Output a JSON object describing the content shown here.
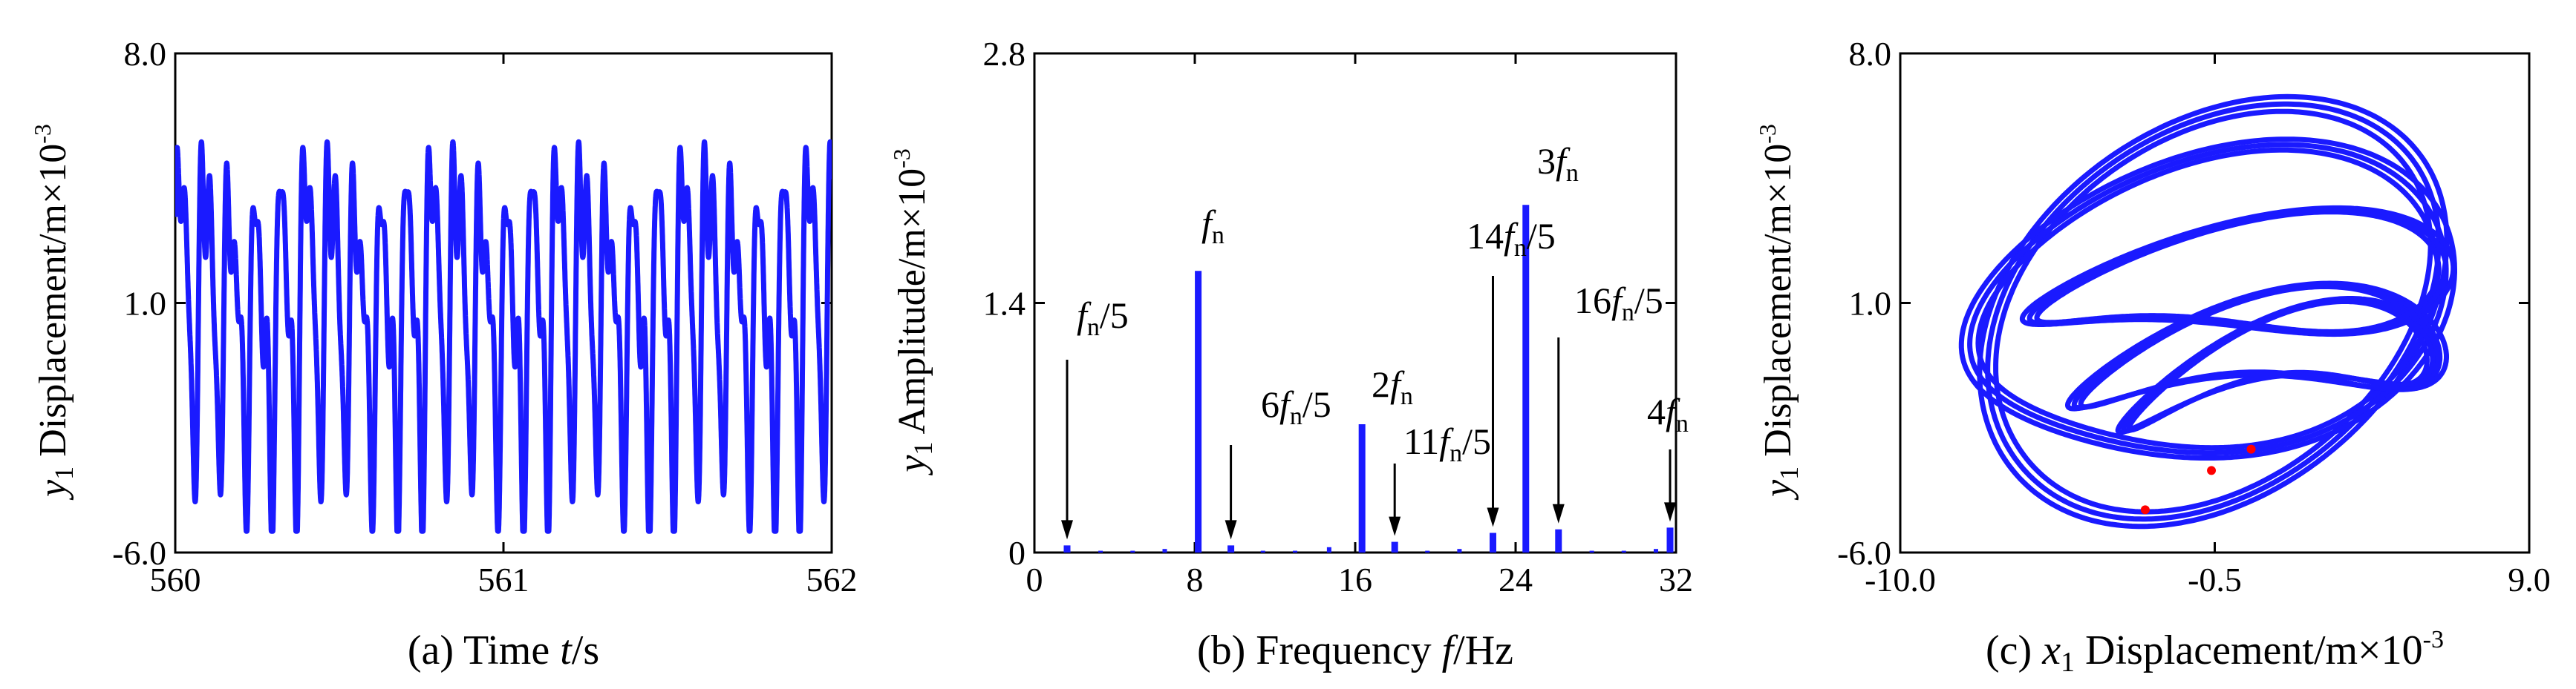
{
  "colors": {
    "series": "#1a1aff",
    "marker": "#ff0000",
    "axis": "#000000"
  },
  "panels": [
    {
      "id": "a",
      "chart_data": {
        "type": "line",
        "caption": {
          "prefix": "(a) Time  ",
          "var": "t",
          "unit": "/s"
        },
        "ylabel": {
          "var": "y",
          "sub": "1",
          "text": " Displacement/m×10",
          "sup": "-3"
        },
        "xlim": [
          560,
          562
        ],
        "ylim": [
          -6.0,
          8.0
        ],
        "xticks": [
          "560",
          "561",
          "562"
        ],
        "yticks": [
          "-6.0",
          "1.0",
          "8.0"
        ],
        "grid": false,
        "series": [
          {
            "model": "quasi-periodic signal, approx. 13 Hz dominant with harmonics, range about -5.4 to 6.8"
          }
        ]
      }
    },
    {
      "id": "b",
      "chart_data": {
        "type": "bar",
        "caption": {
          "prefix": "(b) Frequency  ",
          "var": "f",
          "unit": "/Hz"
        },
        "ylabel": {
          "var": "y",
          "sub": "1",
          "text": " Amplitude/m×10",
          "sup": "-3"
        },
        "xlim": [
          0,
          32
        ],
        "ylim": [
          0,
          2.8
        ],
        "xticks": [
          "0",
          "8",
          "16",
          "24",
          "32"
        ],
        "yticks": [
          "0",
          "1.4",
          "2.8"
        ],
        "grid": false,
        "x": [
          1.63,
          8.17,
          9.8,
          16.34,
          17.97,
          22.87,
          24.51,
          26.14,
          32.68
        ],
        "values": [
          0.04,
          1.58,
          0.04,
          0.72,
          0.06,
          0.11,
          1.95,
          0.13,
          0.14
        ],
        "minor_x": [
          3.3,
          4.9,
          6.5,
          11.4,
          13.0,
          14.7,
          19.6,
          21.2,
          27.8,
          29.4,
          31.0
        ],
        "minor_values": [
          0.01,
          0.01,
          0.02,
          0.01,
          0.01,
          0.03,
          0.01,
          0.02,
          0.01,
          0.01,
          0.02
        ],
        "annotations": [
          {
            "x": 1.63,
            "pre": "",
            "f": "f",
            "sub": "n",
            "post": "/5",
            "arrow": true
          },
          {
            "x": 8.17,
            "pre": "",
            "f": "f",
            "sub": "n",
            "post": "",
            "arrow": false
          },
          {
            "x": 9.8,
            "pre": "6",
            "f": "f",
            "sub": "n",
            "post": "/5",
            "arrow": true
          },
          {
            "x": 16.34,
            "pre": "2",
            "f": "f",
            "sub": "n",
            "post": "",
            "arrow": false
          },
          {
            "x": 17.97,
            "pre": "11",
            "f": "f",
            "sub": "n",
            "post": "/5",
            "arrow": true
          },
          {
            "x": 22.87,
            "pre": "14",
            "f": "f",
            "sub": "n",
            "post": "/5",
            "arrow": true
          },
          {
            "x": 24.51,
            "pre": "3",
            "f": "f",
            "sub": "n",
            "post": "",
            "arrow": false
          },
          {
            "x": 26.14,
            "pre": "16",
            "f": "f",
            "sub": "n",
            "post": "/5",
            "arrow": true
          },
          {
            "x": 32.68,
            "pre": "4",
            "f": "f",
            "sub": "n",
            "post": "",
            "arrow": true
          }
        ]
      }
    },
    {
      "id": "c",
      "chart_data": {
        "type": "line",
        "caption": {
          "prefix": "(c) ",
          "var": "x",
          "sub": "1",
          "text": " Displacement/m×10",
          "sup": "-3"
        },
        "ylabel": {
          "var": "y",
          "sub": "1",
          "text": " Displacement/m×10",
          "sup": "-3"
        },
        "xlim": [
          -10.0,
          9.0
        ],
        "ylim": [
          -6.0,
          8.0
        ],
        "xticks": [
          "-10.0",
          "-0.5",
          "9.0"
        ],
        "yticks": [
          "-6.0",
          "1.0",
          "8.0"
        ],
        "grid": false,
        "series": [
          {
            "model": "phase portrait, multi-loop quasi-periodic orbit"
          }
        ],
        "poincare_points": [
          [
            -2.6,
            -4.8
          ],
          [
            -0.6,
            -3.7
          ],
          [
            0.6,
            -3.1
          ]
        ]
      }
    }
  ]
}
